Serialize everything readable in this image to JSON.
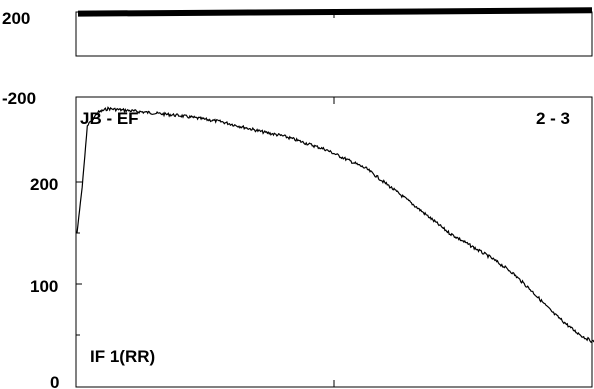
{
  "chart_data": [
    {
      "type": "line",
      "panel": "top",
      "ylim": [
        -200,
        200
      ],
      "y_tick_labels": [
        "200",
        "-200"
      ],
      "series": [
        {
          "style": "thick-band",
          "values": [
            185,
            190,
            195,
            200,
            205,
            210,
            215
          ]
        }
      ]
    },
    {
      "type": "line",
      "panel": "bottom",
      "ylim": [
        0,
        285
      ],
      "y_tick_labels": [
        "200",
        "100",
        "0"
      ],
      "annotations": {
        "top_left": "JB - EF",
        "top_right": "2 - 3",
        "bottom_left": "IF 1(RR)"
      },
      "series": [
        {
          "x": [
            0,
            0.5,
            1,
            2,
            3,
            4,
            5,
            7,
            10,
            14,
            18,
            20,
            24,
            28,
            32,
            36,
            40,
            42,
            44,
            46,
            48,
            49,
            50
          ],
          "values": [
            150,
            195,
            255,
            268,
            272,
            271,
            270,
            268,
            265,
            259,
            249,
            245,
            232,
            213,
            182,
            150,
            126,
            112,
            93,
            72,
            55,
            48,
            43
          ]
        }
      ]
    }
  ],
  "icons": [
    "none"
  ]
}
